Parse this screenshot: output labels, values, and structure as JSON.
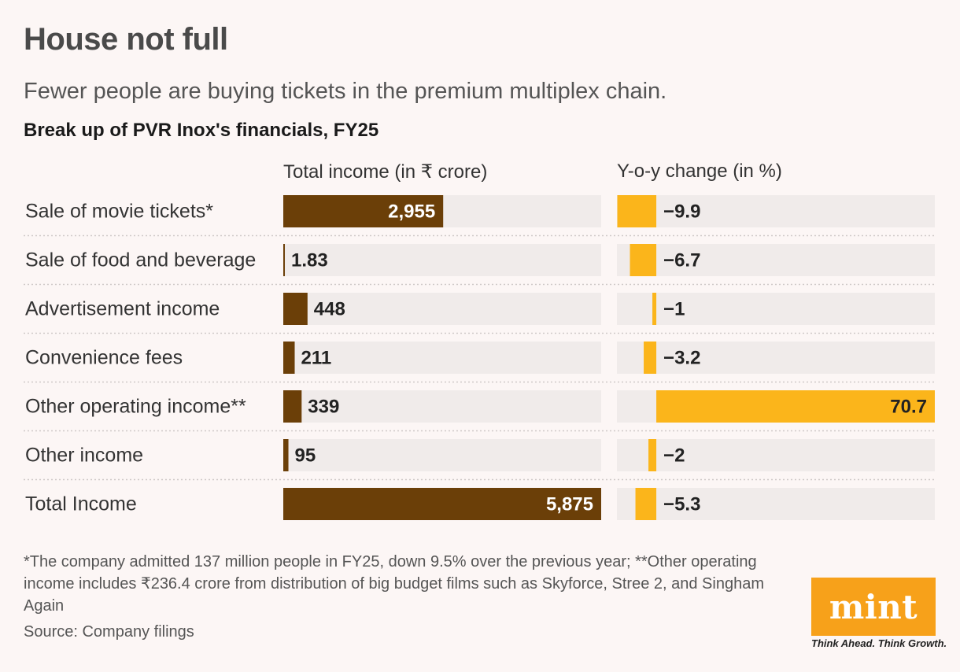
{
  "title": "House not full",
  "subtitle": "Fewer people are buying tickets in the premium multiplex chain.",
  "chart_heading": "Break up of PVR Inox's financials, FY25",
  "footnote": "*The company admitted 137 million people in FY25, down 9.5% over the previous year; **Other operating income includes ₹236.4 crore from distribution of big budget films such as Skyforce, Stree 2, and Singham Again",
  "source": "Source: Company filings",
  "logo": {
    "text": "mint",
    "tagline": "Think Ahead. Think Growth."
  },
  "colors": {
    "income_bar": "#6b3f08",
    "change_bar": "#fbb51b",
    "track": "#f0ebea",
    "separator": "#cfc9c8",
    "logo_bg": "#f7a11a"
  },
  "chart_data": {
    "type": "bar",
    "title": "Break up of PVR Inox's financials, FY25",
    "categories": [
      "Sale of movie tickets*",
      "Sale of food and beverage",
      "Advertisement income",
      "Convenience fees",
      "Other operating income**",
      "Other income",
      "Total Income"
    ],
    "series": [
      {
        "name": "Total income (in ₹ crore)",
        "values": [
          2955,
          1.83,
          448,
          211,
          339,
          95,
          5875
        ],
        "labels": [
          "2,955",
          "1.83",
          "448",
          "211",
          "339",
          "95",
          "5,875"
        ],
        "xlim": [
          0,
          5875
        ]
      },
      {
        "name": "Y-o-y change (in %)",
        "values": [
          -9.9,
          -6.7,
          -1,
          -3.2,
          70.7,
          -2,
          -5.3
        ],
        "labels": [
          "−9.9",
          "−6.7",
          "−1",
          "−3.2",
          "70.7",
          "−2",
          "−5.3"
        ],
        "xlim": [
          -10,
          70.7
        ]
      }
    ]
  }
}
